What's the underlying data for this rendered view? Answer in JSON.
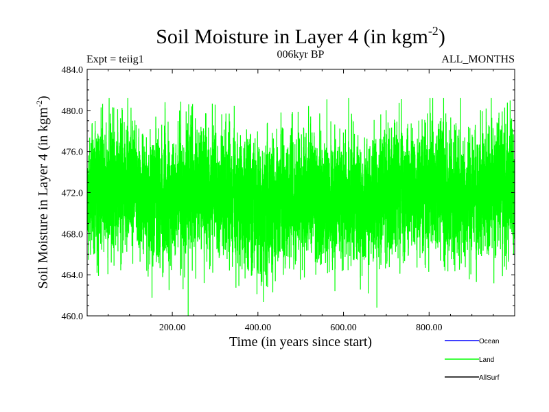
{
  "chart_data": {
    "type": "line",
    "title": "Soil Moisture in Layer 4 (in kgm",
    "title_sup": "-2",
    "title_close": ")",
    "left_label": "Expt = teiig1",
    "center_label": "006kyr BP",
    "right_label": "ALL_MONTHS",
    "xlabel": "Time (in years since start)",
    "ylabel": "Soil Moisture in Layer 4 (in kgm",
    "ylabel_sup": "-2",
    "ylabel_close": ")",
    "xlim": [
      1,
      1000
    ],
    "ylim": [
      460.0,
      484.0
    ],
    "x_ticks": [
      200,
      400,
      600,
      800
    ],
    "x_tick_labels": [
      "200.00",
      "400.00",
      "600.00",
      "800.00"
    ],
    "y_ticks": [
      460,
      464,
      468,
      472,
      476,
      480,
      484
    ],
    "y_tick_labels": [
      "460.0",
      "464.0",
      "468.0",
      "472.0",
      "476.0",
      "480.0",
      "484.0"
    ],
    "legend_position": "bottom-right",
    "series": [
      {
        "name": "Ocean",
        "color": "#0000ff",
        "values": []
      },
      {
        "name": "Land",
        "color": "#00ff00",
        "mean": 471.7,
        "min": 459.9,
        "max": 481.2,
        "sampling": "monthly",
        "n_points": 12000
      },
      {
        "name": "AllSurf",
        "color": "#000000",
        "values": []
      }
    ]
  }
}
